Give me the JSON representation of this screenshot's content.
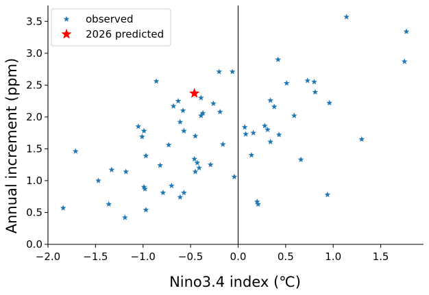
{
  "chart_data": {
    "type": "scatter",
    "title": "",
    "xlabel": "Nino3.4 index (℃)",
    "ylabel": "Annual increment (ppm)",
    "xlim": [
      -2.0,
      1.95
    ],
    "ylim": [
      0.0,
      3.75
    ],
    "xticks": [
      -2.0,
      -1.5,
      -1.0,
      -0.5,
      0.0,
      0.5,
      1.0,
      1.5
    ],
    "xtick_labels": [
      "−2.0",
      "−1.5",
      "−1.0",
      "−0.5",
      "0.0",
      "0.5",
      "1.0",
      "1.5"
    ],
    "yticks": [
      0.0,
      0.5,
      1.0,
      1.5,
      2.0,
      2.5,
      3.0,
      3.5
    ],
    "ytick_labels": [
      "0.0",
      "0.5",
      "1.0",
      "1.5",
      "2.0",
      "2.5",
      "3.0",
      "3.5"
    ],
    "legend_position": "top-left",
    "series": [
      {
        "name": "observed",
        "color": "#1f77b4",
        "marker": "star",
        "points": [
          [
            -1.84,
            0.57
          ],
          [
            -1.71,
            1.46
          ],
          [
            -1.47,
            1.0
          ],
          [
            -1.36,
            0.63
          ],
          [
            -1.33,
            1.17
          ],
          [
            -1.19,
            0.42
          ],
          [
            -1.18,
            1.14
          ],
          [
            -1.05,
            1.85
          ],
          [
            -1.01,
            1.69
          ],
          [
            -0.99,
            1.78
          ],
          [
            -0.99,
            0.9
          ],
          [
            -0.98,
            0.87
          ],
          [
            -0.97,
            1.39
          ],
          [
            -0.97,
            0.54
          ],
          [
            -0.86,
            2.56
          ],
          [
            -0.82,
            1.24
          ],
          [
            -0.79,
            0.81
          ],
          [
            -0.73,
            1.56
          ],
          [
            -0.7,
            0.92
          ],
          [
            -0.68,
            2.17
          ],
          [
            -0.63,
            2.25
          ],
          [
            -0.61,
            0.74
          ],
          [
            -0.61,
            1.92
          ],
          [
            -0.58,
            2.1
          ],
          [
            -0.57,
            1.78
          ],
          [
            -0.57,
            0.81
          ],
          [
            -0.46,
            1.34
          ],
          [
            -0.45,
            1.7
          ],
          [
            -0.45,
            1.14
          ],
          [
            -0.43,
            1.28
          ],
          [
            -0.41,
            1.2
          ],
          [
            -0.39,
            2.3
          ],
          [
            -0.39,
            2.02
          ],
          [
            -0.37,
            2.06
          ],
          [
            -0.29,
            1.25
          ],
          [
            -0.26,
            2.21
          ],
          [
            -0.2,
            2.71
          ],
          [
            -0.19,
            2.08
          ],
          [
            -0.16,
            1.57
          ],
          [
            -0.06,
            2.71
          ],
          [
            -0.04,
            1.06
          ],
          [
            0.07,
            1.84
          ],
          [
            0.08,
            1.73
          ],
          [
            0.14,
            1.4
          ],
          [
            0.16,
            1.75
          ],
          [
            0.2,
            0.67
          ],
          [
            0.21,
            0.63
          ],
          [
            0.28,
            1.86
          ],
          [
            0.31,
            1.8
          ],
          [
            0.34,
            2.26
          ],
          [
            0.34,
            1.61
          ],
          [
            0.38,
            2.16
          ],
          [
            0.42,
            2.9
          ],
          [
            0.43,
            1.72
          ],
          [
            0.51,
            2.53
          ],
          [
            0.59,
            2.02
          ],
          [
            0.66,
            1.33
          ],
          [
            0.73,
            2.57
          ],
          [
            0.8,
            2.55
          ],
          [
            0.81,
            2.39
          ],
          [
            0.94,
            0.78
          ],
          [
            0.96,
            2.22
          ],
          [
            1.14,
            3.57
          ],
          [
            1.3,
            1.65
          ],
          [
            1.75,
            2.87
          ],
          [
            1.77,
            3.34
          ]
        ]
      },
      {
        "name": "2026 predicted",
        "color": "#ff0000",
        "marker": "star",
        "points": [
          [
            -0.46,
            2.37
          ]
        ]
      }
    ]
  }
}
